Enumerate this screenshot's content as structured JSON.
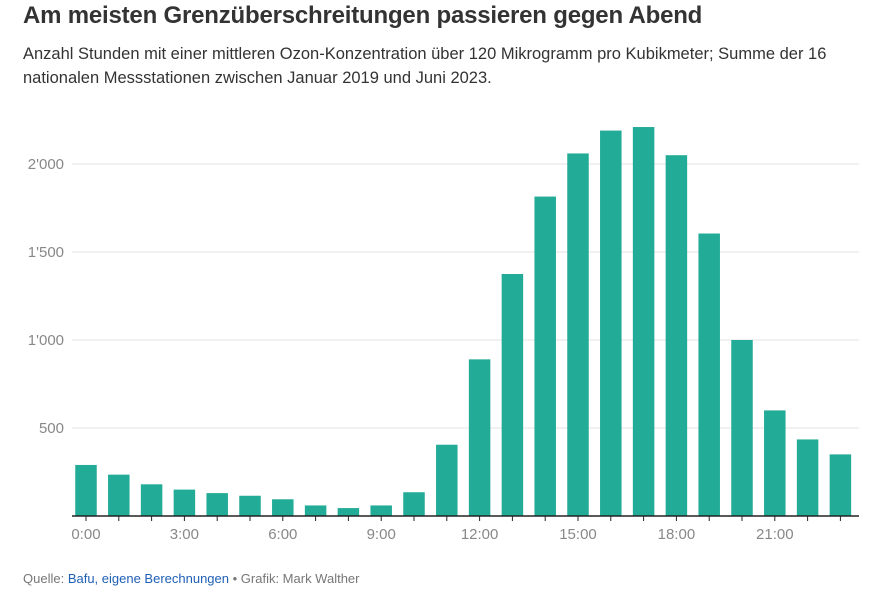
{
  "title": "Am meisten Grenzüberschreitungen passieren gegen Abend",
  "subtitle": "Anzahl Stunden mit einer mittleren Ozon-Konzentration über 120 Mikrogramm pro Kubikmeter; Summe der 16 nationalen Messstationen zwischen Januar 2019 und Juni 2023.",
  "footer": {
    "source_prefix": "Quelle: ",
    "source": "Bafu, eigene Berechnungen",
    "separator": " • ",
    "credit": "Grafik: Mark Walther"
  },
  "colors": {
    "bar": "#22ab96",
    "grid": "#e3e3e3",
    "axis": "#222222"
  },
  "chart_data": {
    "type": "bar",
    "categories": [
      "0:00",
      "1:00",
      "2:00",
      "3:00",
      "4:00",
      "5:00",
      "6:00",
      "7:00",
      "8:00",
      "9:00",
      "10:00",
      "11:00",
      "12:00",
      "13:00",
      "14:00",
      "15:00",
      "16:00",
      "17:00",
      "18:00",
      "19:00",
      "20:00",
      "21:00",
      "22:00",
      "23:00"
    ],
    "values": [
      290,
      235,
      180,
      150,
      130,
      115,
      95,
      60,
      45,
      60,
      135,
      405,
      890,
      1375,
      1815,
      2060,
      2190,
      2210,
      2050,
      1605,
      1000,
      600,
      435,
      350
    ],
    "x_tick_labels": [
      "0:00",
      "3:00",
      "6:00",
      "9:00",
      "12:00",
      "15:00",
      "18:00",
      "21:00"
    ],
    "y_tick_values": [
      500,
      1000,
      1500,
      2000
    ],
    "y_tick_labels": [
      "500",
      "1'000",
      "1'500",
      "2'000"
    ],
    "ylim": [
      0,
      2250
    ],
    "grid": true,
    "legend": "none"
  }
}
